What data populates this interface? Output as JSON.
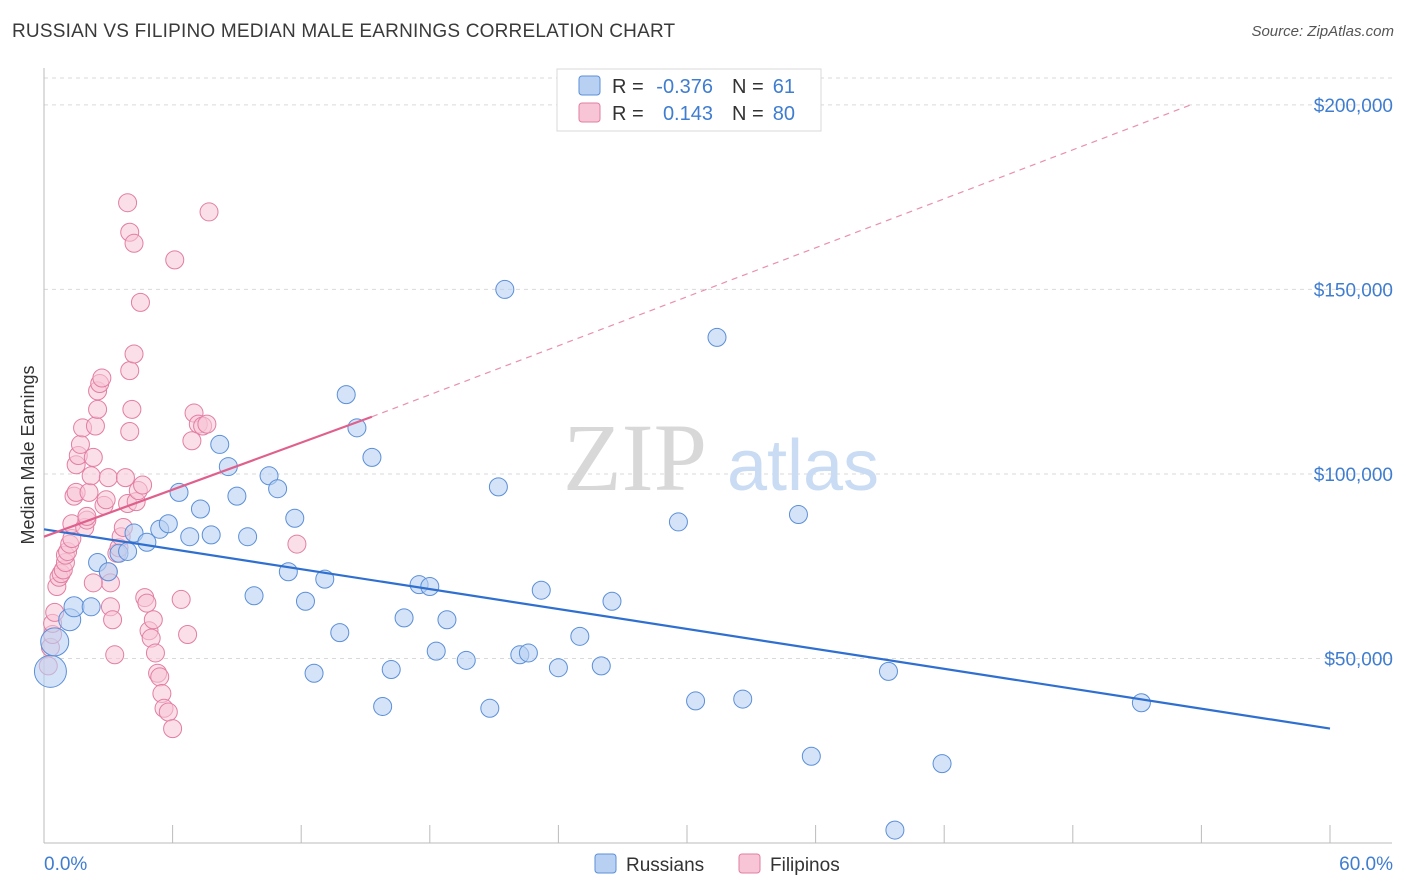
{
  "title": "RUSSIAN VS FILIPINO MEDIAN MALE EARNINGS CORRELATION CHART",
  "source": "Source: ZipAtlas.com",
  "watermark": {
    "zip": "ZIP",
    "atlas": "atlas"
  },
  "colors": {
    "russians_fill": "#b8d0f2",
    "russians_stroke": "#5b8fd8",
    "russians_line": "#2f6fd0",
    "filipinos_fill": "#f7c5d6",
    "filipinos_stroke": "#e27ea3",
    "filipinos_line": "#e0608d",
    "grid": "#d9d9d9",
    "axis_text": "#3f7dd0"
  },
  "legend": {
    "r_label": "R =",
    "n_label": "N =",
    "russians_r": "-0.376",
    "russians_n": "61",
    "filipinos_r": "0.143",
    "filipinos_n": "80"
  },
  "chart_data": {
    "type": "scatter",
    "xlabel": "",
    "ylabel": "Median Male Earnings",
    "xlim": [
      0,
      60
    ],
    "ylim": [
      0,
      210000
    ],
    "x_tick_labels": [
      "0.0%",
      "60.0%"
    ],
    "y_ticks": [
      50000,
      100000,
      150000,
      200000
    ],
    "y_tick_labels": [
      "$50,000",
      "$100,000",
      "$150,000",
      "$200,000"
    ],
    "grid": true,
    "legend_position": "top-center",
    "series": [
      {
        "name": "Russians",
        "trend": {
          "x": [
            0,
            60
          ],
          "y": [
            85000,
            31000
          ],
          "style": "solid"
        },
        "points": [
          [
            0.3,
            46500,
            16
          ],
          [
            0.5,
            54500,
            14
          ],
          [
            1.2,
            60500,
            11
          ],
          [
            1.4,
            64000,
            10
          ],
          [
            2.2,
            64000,
            9
          ],
          [
            2.5,
            76000,
            9
          ],
          [
            3.0,
            73500,
            9
          ],
          [
            3.5,
            78500,
            9
          ],
          [
            3.9,
            79000,
            9
          ],
          [
            4.2,
            84000,
            9
          ],
          [
            4.8,
            81500,
            9
          ],
          [
            5.4,
            85000,
            9
          ],
          [
            5.8,
            86500,
            9
          ],
          [
            6.3,
            95000,
            9
          ],
          [
            6.8,
            83000,
            9
          ],
          [
            7.3,
            90500,
            9
          ],
          [
            7.8,
            83500,
            9
          ],
          [
            8.2,
            108000,
            9
          ],
          [
            8.6,
            102000,
            9
          ],
          [
            9.0,
            94000,
            9
          ],
          [
            9.5,
            83000,
            9
          ],
          [
            9.8,
            67000,
            9
          ],
          [
            10.5,
            99500,
            9
          ],
          [
            10.9,
            96000,
            9
          ],
          [
            11.4,
            73500,
            9
          ],
          [
            11.7,
            88000,
            9
          ],
          [
            12.2,
            65500,
            9
          ],
          [
            12.6,
            46000,
            9
          ],
          [
            13.1,
            71500,
            9
          ],
          [
            13.8,
            57000,
            9
          ],
          [
            14.1,
            121500,
            9
          ],
          [
            14.6,
            112500,
            9
          ],
          [
            15.3,
            104500,
            9
          ],
          [
            15.8,
            37000,
            9
          ],
          [
            16.2,
            47000,
            9
          ],
          [
            16.8,
            61000,
            9
          ],
          [
            17.5,
            70000,
            9
          ],
          [
            18.0,
            69500,
            9
          ],
          [
            18.3,
            52000,
            9
          ],
          [
            18.8,
            60500,
            9
          ],
          [
            19.7,
            49500,
            9
          ],
          [
            20.8,
            36500,
            9
          ],
          [
            21.2,
            96500,
            9
          ],
          [
            21.5,
            150000,
            9
          ],
          [
            22.2,
            51000,
            9
          ],
          [
            22.6,
            51500,
            9
          ],
          [
            23.2,
            68500,
            9
          ],
          [
            24.0,
            47500,
            9
          ],
          [
            25.0,
            56000,
            9
          ],
          [
            26.5,
            65500,
            9
          ],
          [
            29.6,
            87000,
            9
          ],
          [
            30.4,
            38500,
            9
          ],
          [
            31.4,
            137000,
            9
          ],
          [
            32.6,
            39000,
            9
          ],
          [
            35.2,
            89000,
            9
          ],
          [
            35.8,
            23500,
            9
          ],
          [
            39.4,
            46500,
            9
          ],
          [
            39.7,
            3500,
            9
          ],
          [
            41.9,
            21500,
            9
          ],
          [
            51.2,
            38000,
            9
          ],
          [
            26.0,
            48000,
            9
          ]
        ]
      },
      {
        "name": "Filipinos",
        "trend": {
          "x": [
            0,
            15.3
          ],
          "y": [
            83000,
            115500
          ],
          "style": "solid",
          "ext_x": [
            15.3,
            53.5
          ],
          "ext_y": [
            115500,
            200000
          ],
          "ext_style": "dashed"
        },
        "points": [
          [
            0.2,
            48000,
            9
          ],
          [
            0.3,
            53000,
            9
          ],
          [
            0.4,
            56500,
            9
          ],
          [
            0.4,
            59500,
            9
          ],
          [
            0.5,
            62500,
            9
          ],
          [
            0.6,
            69500,
            9
          ],
          [
            0.7,
            72000,
            9
          ],
          [
            0.8,
            73000,
            9
          ],
          [
            0.9,
            74000,
            9
          ],
          [
            1.0,
            76000,
            9
          ],
          [
            1.0,
            78000,
            9
          ],
          [
            1.1,
            79000,
            9
          ],
          [
            1.2,
            81000,
            9
          ],
          [
            1.3,
            82500,
            9
          ],
          [
            1.3,
            86500,
            9
          ],
          [
            1.4,
            94000,
            9
          ],
          [
            1.5,
            95000,
            9
          ],
          [
            1.5,
            102500,
            9
          ],
          [
            1.6,
            105000,
            9
          ],
          [
            1.7,
            108000,
            9
          ],
          [
            1.8,
            112500,
            9
          ],
          [
            1.9,
            85500,
            9
          ],
          [
            2.0,
            87500,
            9
          ],
          [
            2.0,
            88500,
            9
          ],
          [
            2.1,
            95000,
            9
          ],
          [
            2.2,
            99500,
            9
          ],
          [
            2.3,
            104500,
            9
          ],
          [
            2.4,
            113000,
            9
          ],
          [
            2.5,
            117500,
            9
          ],
          [
            2.5,
            122500,
            9
          ],
          [
            2.6,
            124500,
            9
          ],
          [
            2.7,
            126000,
            9
          ],
          [
            2.8,
            91500,
            9
          ],
          [
            2.9,
            93000,
            9
          ],
          [
            3.0,
            99000,
            9
          ],
          [
            3.0,
            73500,
            9
          ],
          [
            3.1,
            70500,
            9
          ],
          [
            3.1,
            64000,
            9
          ],
          [
            3.2,
            60500,
            9
          ],
          [
            3.3,
            51000,
            9
          ],
          [
            3.4,
            78500,
            9
          ],
          [
            3.5,
            80000,
            9
          ],
          [
            3.6,
            83000,
            9
          ],
          [
            3.7,
            85500,
            9
          ],
          [
            3.8,
            99000,
            9
          ],
          [
            3.9,
            92000,
            9
          ],
          [
            4.0,
            111500,
            9
          ],
          [
            4.0,
            128000,
            9
          ],
          [
            4.1,
            117500,
            9
          ],
          [
            4.2,
            132500,
            9
          ],
          [
            4.3,
            92500,
            9
          ],
          [
            4.4,
            95500,
            9
          ],
          [
            4.6,
            97000,
            9
          ],
          [
            4.7,
            66500,
            9
          ],
          [
            4.8,
            65000,
            9
          ],
          [
            4.9,
            57500,
            9
          ],
          [
            5.0,
            55500,
            9
          ],
          [
            5.1,
            60500,
            9
          ],
          [
            5.2,
            51500,
            9
          ],
          [
            5.3,
            46000,
            9
          ],
          [
            5.4,
            45000,
            9
          ],
          [
            5.5,
            40500,
            9
          ],
          [
            5.6,
            36500,
            9
          ],
          [
            5.8,
            35500,
            9
          ],
          [
            6.0,
            31000,
            9
          ],
          [
            6.4,
            66000,
            9
          ],
          [
            6.7,
            56500,
            9
          ],
          [
            6.9,
            109000,
            9
          ],
          [
            7.0,
            116500,
            9
          ],
          [
            7.2,
            113500,
            9
          ],
          [
            7.4,
            113000,
            9
          ],
          [
            7.6,
            113500,
            9
          ],
          [
            3.9,
            173500,
            9
          ],
          [
            4.0,
            165500,
            9
          ],
          [
            4.2,
            162500,
            9
          ],
          [
            4.5,
            146500,
            9
          ],
          [
            6.1,
            158000,
            9
          ],
          [
            7.7,
            171000,
            9
          ],
          [
            11.8,
            81000,
            9
          ],
          [
            2.3,
            70500,
            9
          ]
        ]
      }
    ]
  },
  "bottom_legend": {
    "russians": "Russians",
    "filipinos": "Filipinos"
  }
}
